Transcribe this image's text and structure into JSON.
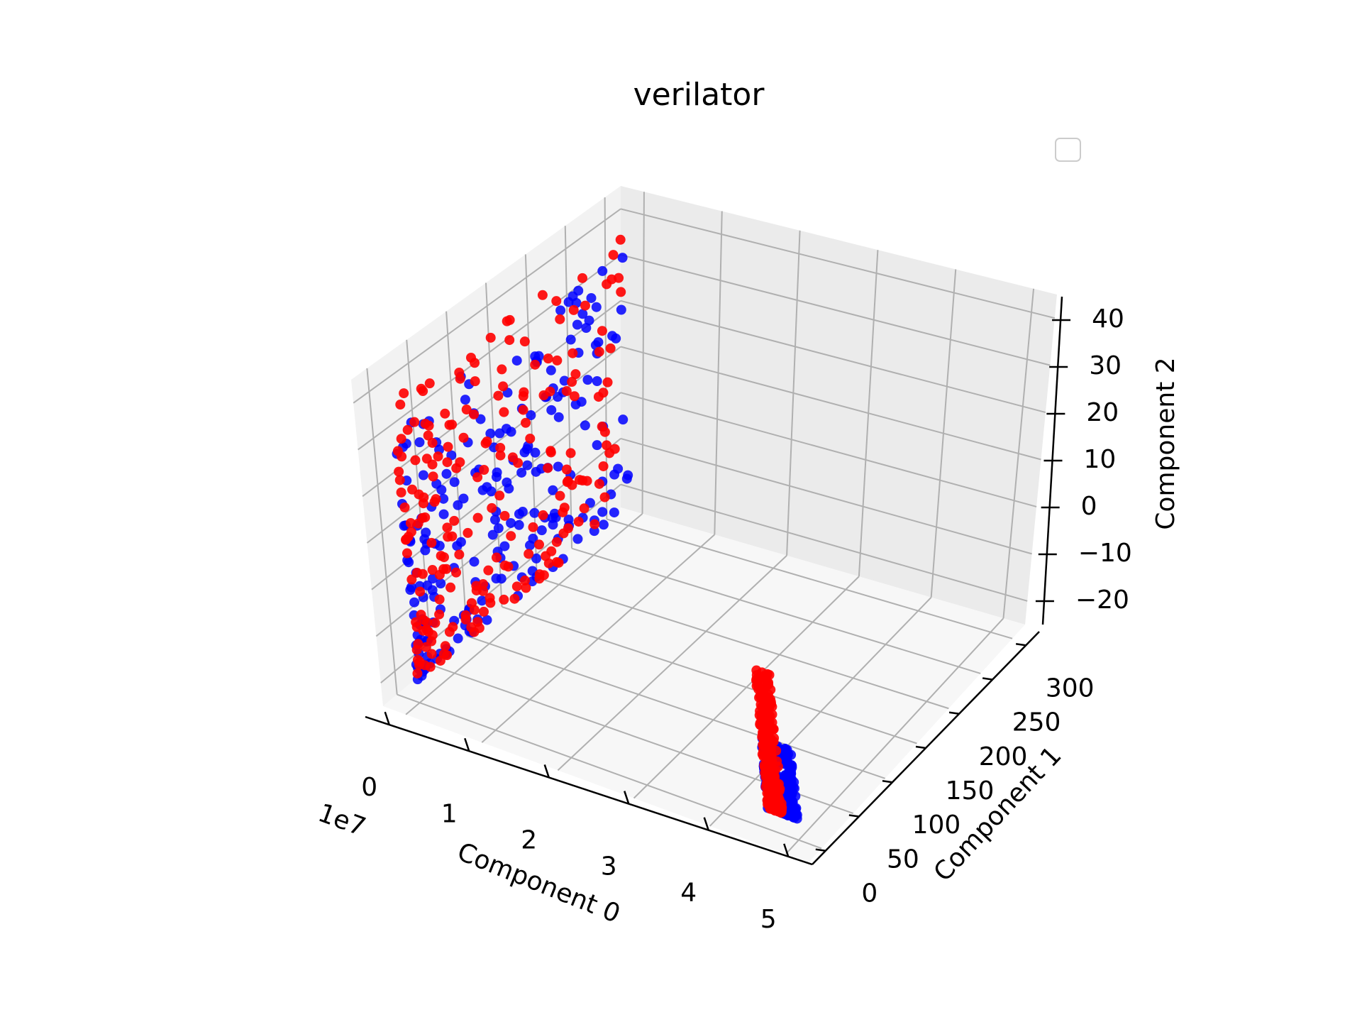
{
  "chart_data": {
    "type": "scatter",
    "projection": "3d",
    "title": "verilator",
    "xlabel": "Component 0",
    "ylabel": "Component 1",
    "zlabel": "Component 2",
    "x_offset_label": "1e7",
    "xlim": [
      -0.3,
      5.3
    ],
    "ylim": [
      -20,
      320
    ],
    "zlim": [
      -25,
      45
    ],
    "x_ticks": [
      "0",
      "1",
      "2",
      "3",
      "4",
      "5"
    ],
    "y_ticks": [
      "0",
      "50",
      "100",
      "150",
      "200",
      "250",
      "300"
    ],
    "z_ticks": [
      "−20",
      "−10",
      "0",
      "10",
      "20",
      "30",
      "40"
    ],
    "grid": true,
    "legend": {
      "placement": "top-right",
      "entries": []
    },
    "series": [
      {
        "color": "#0000ff",
        "clusters": [
          {
            "x": [
              0,
              0
            ],
            "y": [
              0,
              300
            ],
            "z": [
              -20,
              35
            ]
          },
          {
            "x": [
              4.6,
              5.0
            ],
            "y": [
              0,
              0
            ],
            "z": [
              -20,
              -5
            ]
          }
        ]
      },
      {
        "color": "#ff0000",
        "clusters": [
          {
            "x": [
              0,
              0
            ],
            "y": [
              0,
              300
            ],
            "z": [
              -20,
              40
            ]
          },
          {
            "x": [
              4.6,
              4.8
            ],
            "y": [
              0,
              0
            ],
            "z": [
              -20,
              10
            ]
          }
        ]
      }
    ]
  }
}
